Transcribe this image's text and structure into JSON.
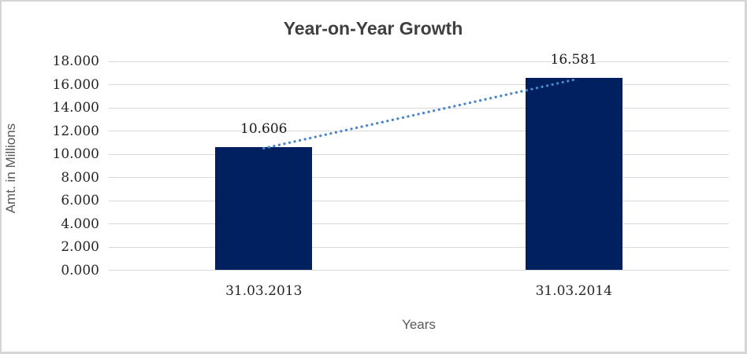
{
  "chart_data": {
    "type": "bar",
    "title": "Year-on-Year Growth",
    "xlabel": "Years",
    "ylabel": "Amt. in Millions",
    "categories": [
      "31.03.2013",
      "31.03.2014"
    ],
    "values": [
      10.606,
      16.581
    ],
    "value_labels": [
      "10.606",
      "16.581"
    ],
    "y_ticks": [
      "0.000",
      "2.000",
      "4.000",
      "6.000",
      "8.000",
      "10.000",
      "12.000",
      "14.000",
      "16.000",
      "18.000"
    ],
    "ylim": [
      0,
      18
    ],
    "grid": true,
    "legend": false,
    "trendline": {
      "type": "linear",
      "style": "dotted"
    },
    "colors": {
      "bar": "#002060",
      "trendline": "#4a86c8",
      "gridline": "#d9d9d9",
      "title": "#3f3f3f",
      "axis_title": "#595959",
      "tick_label": "#262626",
      "data_label": "#1a1a1a",
      "background": "#ffffff",
      "border": "#d5d5d5"
    }
  }
}
